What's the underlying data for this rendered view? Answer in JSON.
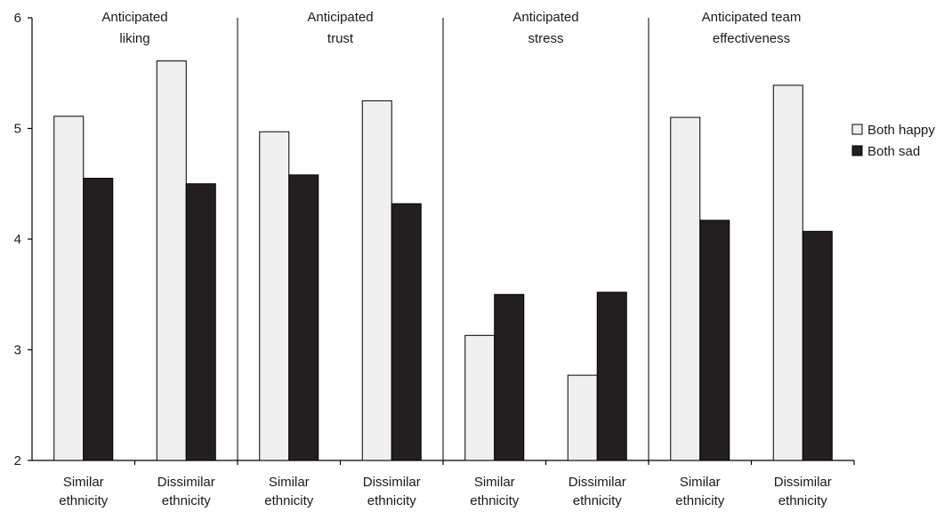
{
  "chart_data": {
    "type": "bar",
    "panels": [
      {
        "title": "Anticipated\nliking"
      },
      {
        "title": "Anticipated\ntrust"
      },
      {
        "title": "Anticipated\nstress"
      },
      {
        "title": "Anticipated team\neffectiveness"
      }
    ],
    "categories": [
      "Similar\nethnicity",
      "Dissimilar\nethnicity",
      "Similar\nethnicity",
      "Dissimilar\nethnicity",
      "Similar\nethnicity",
      "Dissimilar\nethnicity",
      "Similar\nethnicity",
      "Dissimilar\nethnicity"
    ],
    "series": [
      {
        "name": "Both happy",
        "color": "#f0f0f0",
        "values": [
          5.11,
          5.61,
          4.97,
          5.25,
          3.13,
          2.77,
          5.1,
          5.39
        ]
      },
      {
        "name": "Both sad",
        "color": "#231f20",
        "values": [
          4.55,
          4.5,
          4.58,
          4.32,
          3.5,
          3.52,
          4.17,
          4.07
        ]
      }
    ],
    "ylim": [
      2,
      6
    ],
    "yticks": [
      "2",
      "3",
      "4",
      "5",
      "6"
    ],
    "xlabel": "",
    "ylabel": "",
    "legend_position": "right",
    "grid": false
  }
}
